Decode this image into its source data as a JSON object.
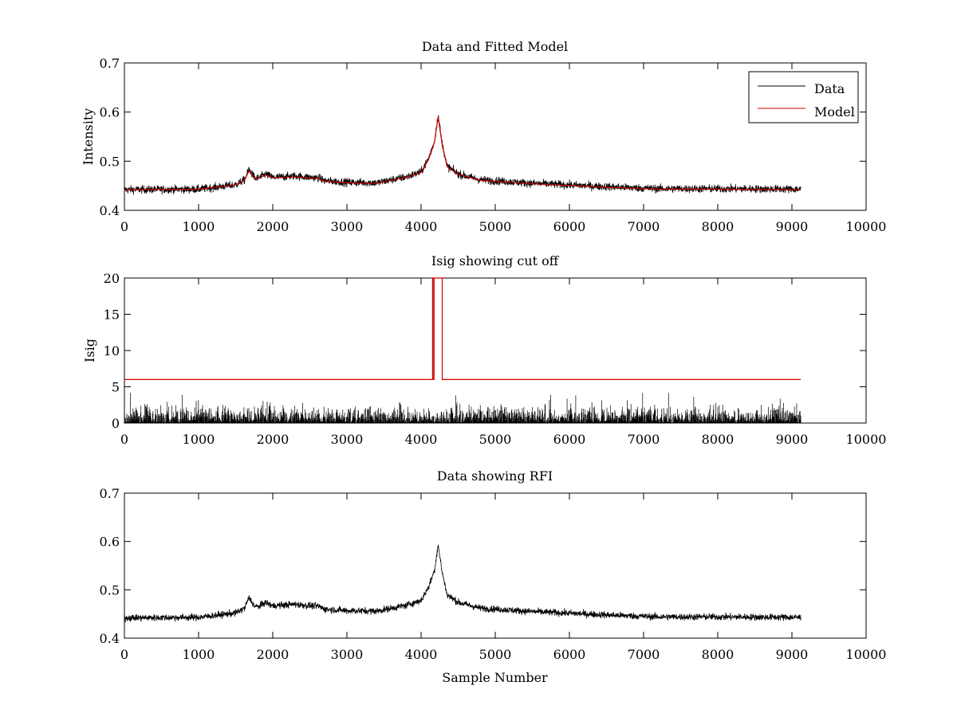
{
  "chart_data": [
    {
      "type": "line",
      "title": "Data and Fitted Model",
      "xlabel": "",
      "ylabel": "Intensity",
      "xlim": [
        0,
        10000
      ],
      "ylim": [
        0.4,
        0.7
      ],
      "xticks": [
        "0",
        "1000",
        "2000",
        "3000",
        "4000",
        "5000",
        "6000",
        "7000",
        "8000",
        "9000",
        "10000"
      ],
      "yticks": [
        "0.4",
        "0.5",
        "0.6",
        "0.7"
      ],
      "legend": {
        "position": "top-right",
        "entries": [
          "Data",
          "Model"
        ]
      },
      "series": [
        {
          "name": "Data",
          "color": "#000000",
          "noise": 0.004,
          "x_range": [
            0,
            9120
          ],
          "points": [
            [
              0,
              0.442
            ],
            [
              1000,
              0.443
            ],
            [
              1500,
              0.452
            ],
            [
              1620,
              0.462
            ],
            [
              1680,
              0.484
            ],
            [
              1760,
              0.465
            ],
            [
              1820,
              0.466
            ],
            [
              1900,
              0.474
            ],
            [
              2000,
              0.467
            ],
            [
              2300,
              0.47
            ],
            [
              2500,
              0.467
            ],
            [
              2620,
              0.466
            ],
            [
              2700,
              0.46
            ],
            [
              3000,
              0.457
            ],
            [
              3400,
              0.456
            ],
            [
              3800,
              0.468
            ],
            [
              4000,
              0.478
            ],
            [
              4100,
              0.505
            ],
            [
              4180,
              0.54
            ],
            [
              4230,
              0.594
            ],
            [
              4280,
              0.54
            ],
            [
              4350,
              0.49
            ],
            [
              4500,
              0.474
            ],
            [
              4800,
              0.462
            ],
            [
              5500,
              0.455
            ],
            [
              6500,
              0.448
            ],
            [
              7200,
              0.444
            ],
            [
              8000,
              0.444
            ],
            [
              9120,
              0.443
            ]
          ]
        },
        {
          "name": "Model",
          "color": "#cc0000",
          "noise": 0,
          "x_range": [
            0,
            9120
          ],
          "points": [
            [
              0,
              0.442
            ],
            [
              1000,
              0.443
            ],
            [
              1500,
              0.452
            ],
            [
              1620,
              0.462
            ],
            [
              1680,
              0.48
            ],
            [
              1760,
              0.465
            ],
            [
              1820,
              0.466
            ],
            [
              1900,
              0.472
            ],
            [
              2000,
              0.466
            ],
            [
              2300,
              0.468
            ],
            [
              2500,
              0.466
            ],
            [
              2620,
              0.465
            ],
            [
              2700,
              0.459
            ],
            [
              3000,
              0.456
            ],
            [
              3400,
              0.455
            ],
            [
              3800,
              0.467
            ],
            [
              4000,
              0.477
            ],
            [
              4100,
              0.503
            ],
            [
              4180,
              0.538
            ],
            [
              4230,
              0.59
            ],
            [
              4280,
              0.538
            ],
            [
              4350,
              0.489
            ],
            [
              4500,
              0.473
            ],
            [
              4800,
              0.461
            ],
            [
              5500,
              0.454
            ],
            [
              6500,
              0.447
            ],
            [
              7200,
              0.443
            ],
            [
              8000,
              0.443
            ],
            [
              9120,
              0.442
            ]
          ]
        }
      ]
    },
    {
      "type": "line",
      "title": "Isig showing cut off",
      "xlabel": "",
      "ylabel": "Isig",
      "xlim": [
        0,
        10000
      ],
      "ylim": [
        0,
        20
      ],
      "xticks": [
        "0",
        "1000",
        "2000",
        "3000",
        "4000",
        "5000",
        "6000",
        "7000",
        "8000",
        "9000",
        "10000"
      ],
      "yticks": [
        "0",
        "5",
        "10",
        "15",
        "20"
      ],
      "series": [
        {
          "name": "Isig",
          "color": "#000000",
          "type": "noise",
          "x_range": [
            0,
            9120
          ],
          "typical_max": 2.0,
          "spike_max": 4.2
        },
        {
          "name": "Cut off",
          "color": "#cc0000",
          "points": [
            [
              0,
              6
            ],
            [
              4155,
              6
            ],
            [
              4155,
              20
            ],
            [
              4170,
              20
            ],
            [
              4170,
              6
            ],
            [
              4175,
              6
            ],
            [
              4175,
              20
            ],
            [
              4285,
              20
            ],
            [
              4285,
              6
            ],
            [
              9120,
              6
            ]
          ]
        }
      ]
    },
    {
      "type": "line",
      "title": "Data showing RFI",
      "xlabel": "Sample Number",
      "ylabel": "",
      "xlim": [
        0,
        10000
      ],
      "ylim": [
        0.4,
        0.7
      ],
      "xticks": [
        "0",
        "1000",
        "2000",
        "3000",
        "4000",
        "5000",
        "6000",
        "7000",
        "8000",
        "9000",
        "10000"
      ],
      "yticks": [
        "0.4",
        "0.5",
        "0.6",
        "0.7"
      ],
      "series": [
        {
          "name": "Data",
          "color": "#000000",
          "noise": 0.0035,
          "x_range": [
            0,
            9120
          ],
          "points": [
            [
              0,
              0.442
            ],
            [
              1000,
              0.443
            ],
            [
              1500,
              0.452
            ],
            [
              1620,
              0.462
            ],
            [
              1680,
              0.484
            ],
            [
              1760,
              0.465
            ],
            [
              1820,
              0.466
            ],
            [
              1900,
              0.474
            ],
            [
              2000,
              0.467
            ],
            [
              2300,
              0.47
            ],
            [
              2500,
              0.467
            ],
            [
              2620,
              0.466
            ],
            [
              2700,
              0.46
            ],
            [
              3000,
              0.457
            ],
            [
              3400,
              0.456
            ],
            [
              3800,
              0.468
            ],
            [
              4000,
              0.478
            ],
            [
              4100,
              0.505
            ],
            [
              4180,
              0.54
            ],
            [
              4230,
              0.594
            ],
            [
              4280,
              0.54
            ],
            [
              4350,
              0.49
            ],
            [
              4500,
              0.474
            ],
            [
              4800,
              0.462
            ],
            [
              5500,
              0.455
            ],
            [
              6500,
              0.448
            ],
            [
              7200,
              0.444
            ],
            [
              8000,
              0.444
            ],
            [
              9120,
              0.443
            ]
          ]
        }
      ]
    }
  ]
}
